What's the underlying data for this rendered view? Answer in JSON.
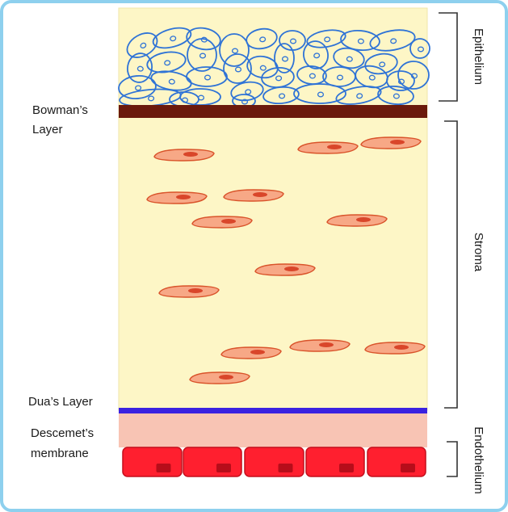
{
  "colors": {
    "frame_border": "#8ed0ee",
    "background": "#ffffff",
    "stroma_fill": "#fdf6c6",
    "stroma_edge": "#f0e6a8",
    "epithelial_cell_stroke": "#2f73d6",
    "bowman_layer": "#6b1a0c",
    "keratocyte_fill": "#f7a886",
    "keratocyte_stroke": "#d9532a",
    "keratocyte_nucleus": "#d9462a",
    "dua_layer": "#3a22e0",
    "descemet_membrane": "#f8c4b4",
    "endothelial_fill": "#ff1f2f",
    "endothelial_stroke": "#c40f1c",
    "endothelial_nucleus": "#b70d1a",
    "bracket": "#333333"
  },
  "left_labels": {
    "bowman_line1": "Bowman’s",
    "bowman_line2": "Layer",
    "dua": "Dua’s Layer",
    "descemet_line1": "Descemet’s",
    "descemet_line2": "membrane"
  },
  "right_labels": {
    "epithelium": "Epithelium",
    "stroma": "Stroma",
    "endothelium": "Endothelium"
  }
}
